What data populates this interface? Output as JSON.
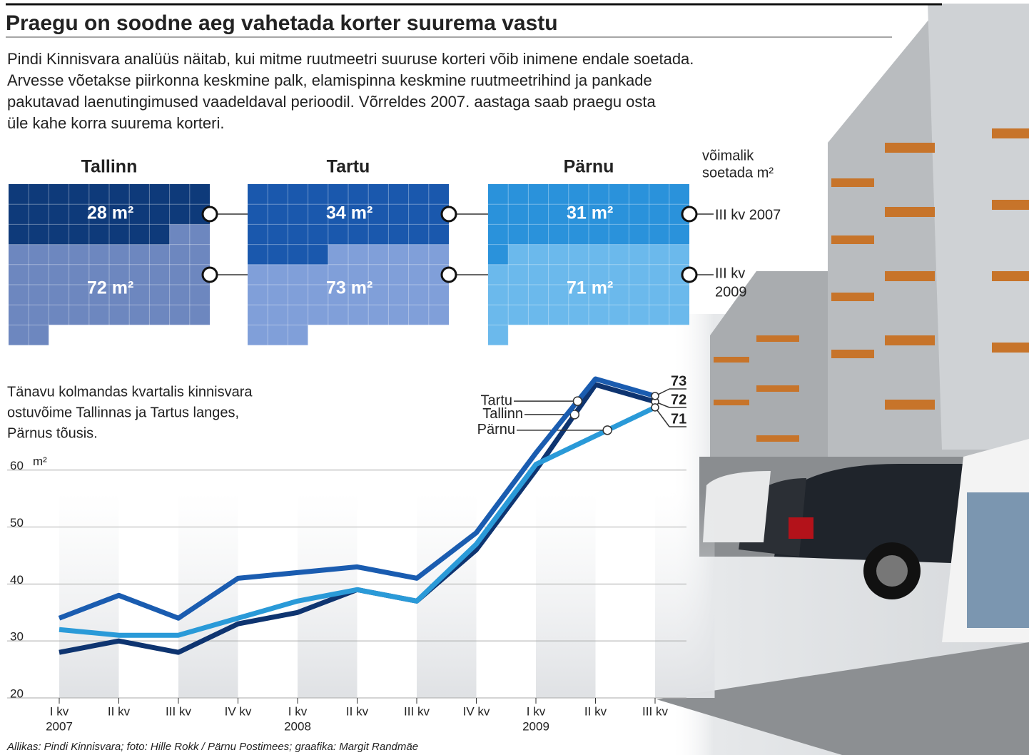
{
  "header": {
    "title": "Praegu on soodne aeg vahetada korter suurema vastu",
    "intro": [
      "Pindi Kinnisvara analüüs näitab, kui mitme ruutmeetri suuruse korteri võib inimene endale soetada.",
      "Arvesse võetakse piirkonna keskmine palk, elamispinna keskmine ruutmeetrihind ja pankade",
      "pakutavad laenutingimused vaadeldaval perioodil. Võrreldes 2007. aastaga saab praegu osta",
      "üle kahe korra suurema korteri."
    ]
  },
  "grids": {
    "legend_title": [
      "võimalik",
      "soetada m²"
    ],
    "periods": [
      [
        "III kv 2007"
      ],
      [
        "III kv",
        "2009"
      ]
    ],
    "cities": [
      {
        "name": "Tallinn",
        "values": [
          28,
          72
        ],
        "value_labels": [
          "28 m²",
          "72 m²"
        ],
        "colors": [
          "#0e3a7a",
          "#6d87bf"
        ]
      },
      {
        "name": "Tartu",
        "values": [
          34,
          73
        ],
        "value_labels": [
          "34 m²",
          "73 m²"
        ],
        "colors": [
          "#1a58ad",
          "#809fd9"
        ]
      },
      {
        "name": "Pärnu",
        "values": [
          31,
          71
        ],
        "value_labels": [
          "31 m²",
          "71 m²"
        ],
        "colors": [
          "#2a92db",
          "#6bb9ec"
        ]
      }
    ]
  },
  "chart_data": {
    "type": "line",
    "title": [
      "Tänavu kolmandas kvartalis kinnisvara",
      "ostuvõime Tallinnas ja Tartus langes,",
      "Pärnus tõusis."
    ],
    "y_unit": "m²",
    "categories": [
      "I kv",
      "II kv",
      "III kv",
      "IV kv",
      "I kv",
      "II kv",
      "III kv",
      "IV kv",
      "I kv",
      "II kv",
      "III kv"
    ],
    "year_labels": [
      "2007",
      "2008",
      "2009"
    ],
    "series": [
      {
        "name": "Tartu",
        "color": "#1a5cb0",
        "values": [
          34,
          38,
          34,
          41,
          42,
          43,
          41,
          49,
          63,
          76,
          73
        ],
        "end_label": "73"
      },
      {
        "name": "Tallinn",
        "color": "#0e3470",
        "values": [
          28,
          30,
          28,
          33,
          35,
          39,
          37,
          46,
          60,
          75,
          72
        ],
        "end_label": "72"
      },
      {
        "name": "Pärnu",
        "color": "#2a9ad8",
        "values": [
          32,
          31,
          31,
          34,
          37,
          39,
          37,
          47,
          61,
          66,
          71
        ],
        "end_label": "71"
      }
    ],
    "ylim": [
      20,
      77
    ],
    "yticks": [
      20,
      30,
      40,
      50,
      60
    ],
    "grid": true
  },
  "source": "Allikas: Pindi Kinnisvara; foto: Hille Rokk / Pärnu Postimees; graafika: Margit Randmäe"
}
